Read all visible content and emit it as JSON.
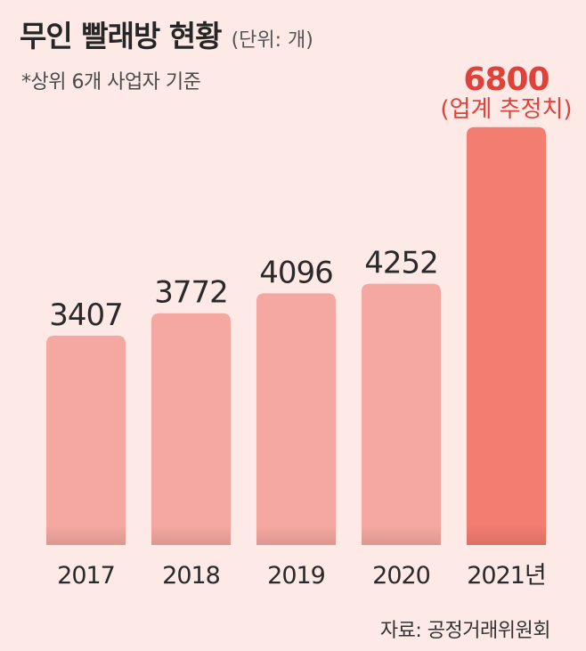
{
  "header": {
    "title": "무인 빨래방 현황",
    "unit": "(단위: 개)",
    "subtitle": "*상위 6개 사업자 기준"
  },
  "footer": {
    "source": "자료: 공정거래위원회"
  },
  "colors": {
    "background": "#fde9e6",
    "bar": "#f4a8a1",
    "bar_highlight": "#f27d70",
    "highlight_text": "#e0423a"
  },
  "chart_data": {
    "type": "bar",
    "title": "무인 빨래방 현황",
    "ylabel": "",
    "xlabel": "",
    "categories": [
      "2017",
      "2018",
      "2019",
      "2020",
      "2021년"
    ],
    "values": [
      3407,
      3772,
      4096,
      4252,
      6800
    ],
    "data_labels": [
      "3407",
      "3772",
      "4096",
      "4252",
      "6800"
    ],
    "highlight_index": 4,
    "highlight_note": "(업계 추정치)",
    "ylim": [
      0,
      7000
    ],
    "grid": false,
    "legend": "none"
  }
}
